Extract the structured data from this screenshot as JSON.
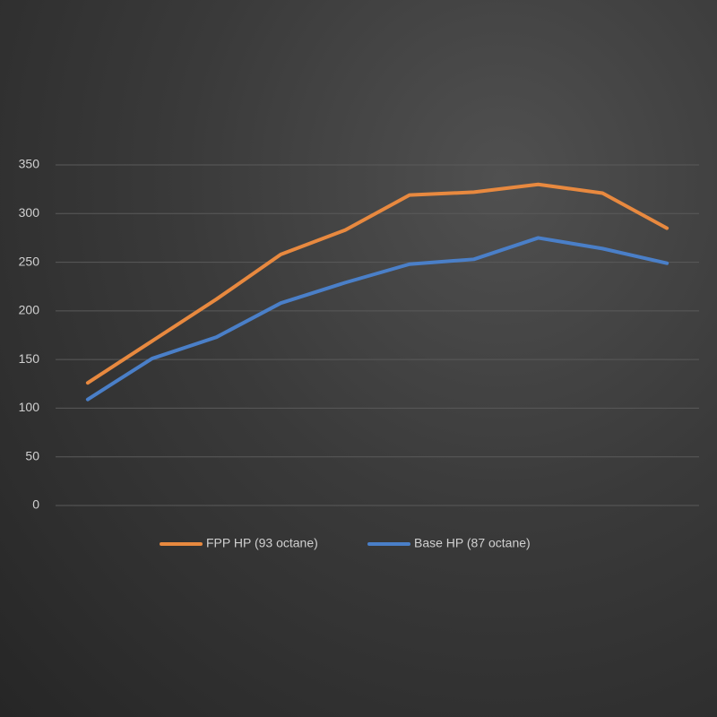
{
  "chart_data": {
    "type": "line",
    "categories": [
      null,
      null,
      null,
      null,
      null,
      null,
      null,
      null,
      null,
      null
    ],
    "series": [
      {
        "name": "FPP HP (93 octane)",
        "color": "#e8893f",
        "values": [
          126,
          169,
          212,
          258,
          283,
          319,
          322,
          330,
          321,
          285
        ]
      },
      {
        "name": "Base HP (87 octane)",
        "color": "#4a7fc8",
        "values": [
          109,
          151,
          173,
          208,
          229,
          248,
          253,
          275,
          264,
          249
        ]
      }
    ],
    "ylim": [
      0,
      350
    ],
    "yticks": [
      0,
      50,
      100,
      150,
      200,
      250,
      300,
      350
    ],
    "grid": true,
    "legend": "bottom"
  }
}
